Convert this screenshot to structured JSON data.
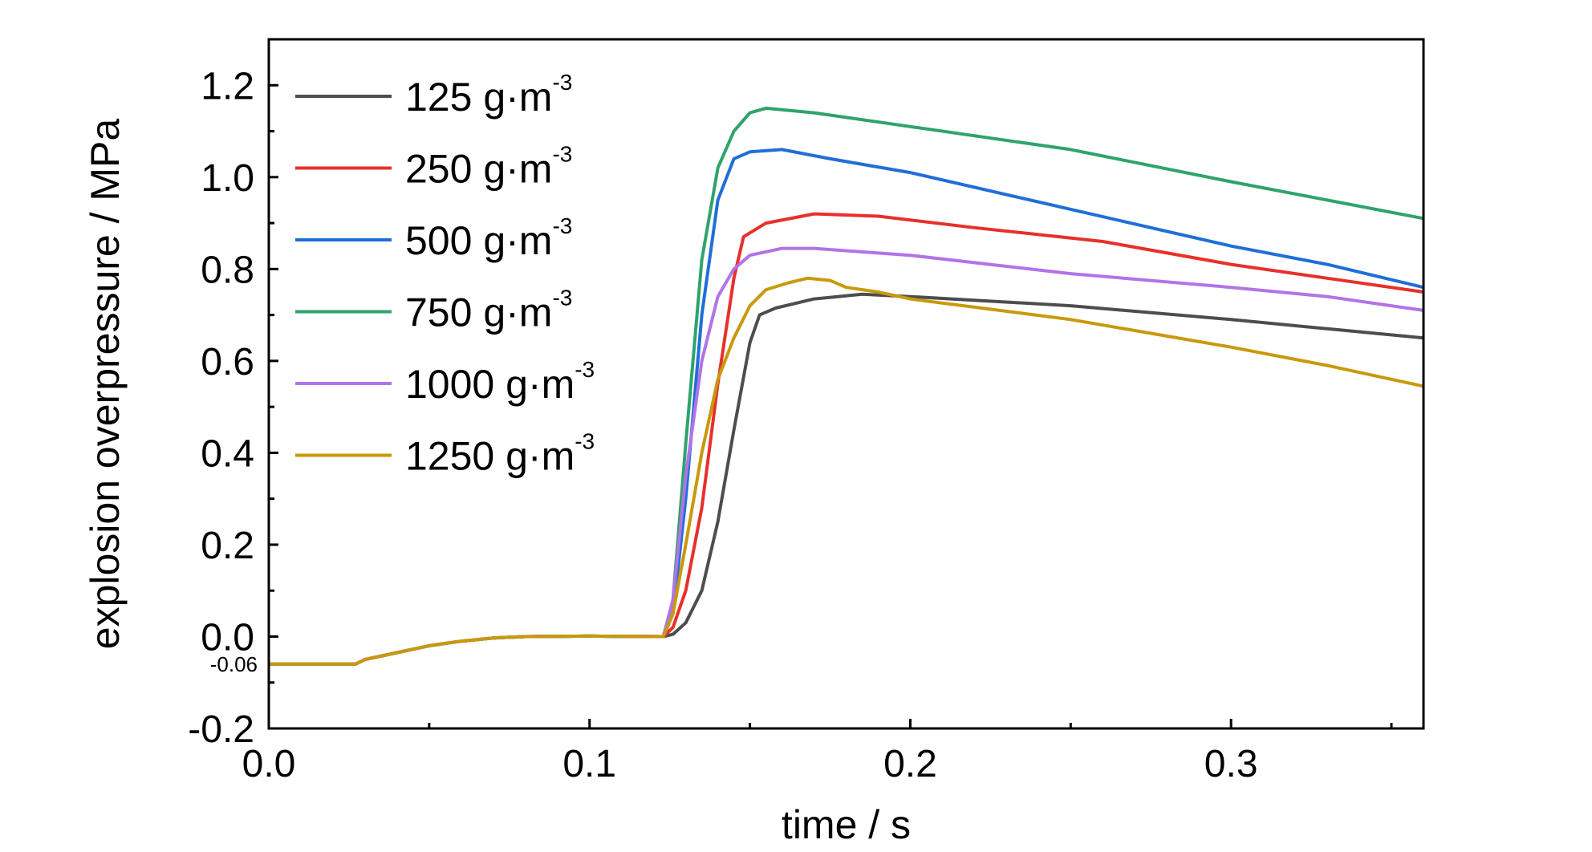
{
  "chart_data": {
    "type": "line",
    "xlabel": "time / s",
    "ylabel": "explosion overpressure / MPa",
    "xlim": [
      0,
      0.36
    ],
    "ylim": [
      -0.2,
      1.3
    ],
    "xticks": [
      0.0,
      0.1,
      0.2,
      0.3
    ],
    "xtick_labels": [
      "0.0",
      "0.1",
      "0.2",
      "0.3"
    ],
    "yticks": [
      -0.2,
      0.0,
      0.2,
      0.4,
      0.6,
      0.8,
      1.0,
      1.2
    ],
    "ytick_labels": [
      "-0.2",
      "0.0",
      "0.2",
      "0.4",
      "0.6",
      "0.8",
      "1.0",
      "1.2"
    ],
    "annotation": {
      "text": "-0.06",
      "y": -0.06
    },
    "grid": false,
    "legend_position": "top-left",
    "unit_base": "g·m",
    "unit_exponent": "-3",
    "series": [
      {
        "name": "125",
        "color": "#4d4d4d",
        "points": [
          [
            0,
            -0.06
          ],
          [
            0.027,
            -0.06
          ],
          [
            0.03,
            -0.05
          ],
          [
            0.04,
            -0.035
          ],
          [
            0.05,
            -0.02
          ],
          [
            0.06,
            -0.01
          ],
          [
            0.07,
            -0.003
          ],
          [
            0.08,
            0
          ],
          [
            0.1,
            0.001
          ],
          [
            0.123,
            0
          ],
          [
            0.126,
            0.005
          ],
          [
            0.13,
            0.03
          ],
          [
            0.135,
            0.1
          ],
          [
            0.14,
            0.25
          ],
          [
            0.145,
            0.45
          ],
          [
            0.15,
            0.64
          ],
          [
            0.153,
            0.7
          ],
          [
            0.158,
            0.715
          ],
          [
            0.17,
            0.735
          ],
          [
            0.185,
            0.745
          ],
          [
            0.2,
            0.74
          ],
          [
            0.25,
            0.72
          ],
          [
            0.3,
            0.69
          ],
          [
            0.33,
            0.67
          ],
          [
            0.36,
            0.65
          ]
        ]
      },
      {
        "name": "250",
        "color": "#e8302a",
        "points": [
          [
            0,
            -0.06
          ],
          [
            0.027,
            -0.06
          ],
          [
            0.03,
            -0.05
          ],
          [
            0.04,
            -0.035
          ],
          [
            0.05,
            -0.02
          ],
          [
            0.06,
            -0.01
          ],
          [
            0.07,
            -0.003
          ],
          [
            0.08,
            0
          ],
          [
            0.1,
            0.001
          ],
          [
            0.123,
            0
          ],
          [
            0.126,
            0.02
          ],
          [
            0.13,
            0.1
          ],
          [
            0.135,
            0.28
          ],
          [
            0.14,
            0.55
          ],
          [
            0.145,
            0.78
          ],
          [
            0.148,
            0.87
          ],
          [
            0.155,
            0.9
          ],
          [
            0.17,
            0.92
          ],
          [
            0.19,
            0.915
          ],
          [
            0.22,
            0.89
          ],
          [
            0.26,
            0.86
          ],
          [
            0.3,
            0.81
          ],
          [
            0.33,
            0.78
          ],
          [
            0.36,
            0.75
          ]
        ]
      },
      {
        "name": "500",
        "color": "#1f6fd8",
        "points": [
          [
            0,
            -0.06
          ],
          [
            0.027,
            -0.06
          ],
          [
            0.03,
            -0.05
          ],
          [
            0.04,
            -0.035
          ],
          [
            0.05,
            -0.02
          ],
          [
            0.06,
            -0.01
          ],
          [
            0.07,
            -0.003
          ],
          [
            0.08,
            0
          ],
          [
            0.1,
            0.001
          ],
          [
            0.123,
            0
          ],
          [
            0.126,
            0.05
          ],
          [
            0.13,
            0.3
          ],
          [
            0.135,
            0.7
          ],
          [
            0.14,
            0.95
          ],
          [
            0.145,
            1.04
          ],
          [
            0.15,
            1.055
          ],
          [
            0.16,
            1.06
          ],
          [
            0.175,
            1.04
          ],
          [
            0.2,
            1.01
          ],
          [
            0.25,
            0.93
          ],
          [
            0.3,
            0.85
          ],
          [
            0.33,
            0.81
          ],
          [
            0.36,
            0.76
          ]
        ]
      },
      {
        "name": "750",
        "color": "#2fa36b",
        "points": [
          [
            0,
            -0.06
          ],
          [
            0.027,
            -0.06
          ],
          [
            0.03,
            -0.05
          ],
          [
            0.04,
            -0.035
          ],
          [
            0.05,
            -0.02
          ],
          [
            0.06,
            -0.01
          ],
          [
            0.07,
            -0.003
          ],
          [
            0.08,
            0
          ],
          [
            0.1,
            0.001
          ],
          [
            0.123,
            0
          ],
          [
            0.126,
            0.08
          ],
          [
            0.13,
            0.42
          ],
          [
            0.135,
            0.82
          ],
          [
            0.14,
            1.02
          ],
          [
            0.145,
            1.1
          ],
          [
            0.15,
            1.14
          ],
          [
            0.155,
            1.15
          ],
          [
            0.17,
            1.14
          ],
          [
            0.2,
            1.11
          ],
          [
            0.25,
            1.06
          ],
          [
            0.3,
            0.99
          ],
          [
            0.33,
            0.95
          ],
          [
            0.36,
            0.91
          ]
        ]
      },
      {
        "name": "1000",
        "color": "#b174e6",
        "points": [
          [
            0,
            -0.06
          ],
          [
            0.027,
            -0.06
          ],
          [
            0.03,
            -0.05
          ],
          [
            0.04,
            -0.035
          ],
          [
            0.05,
            -0.02
          ],
          [
            0.06,
            -0.01
          ],
          [
            0.07,
            -0.003
          ],
          [
            0.08,
            0
          ],
          [
            0.1,
            0.001
          ],
          [
            0.123,
            0
          ],
          [
            0.126,
            0.08
          ],
          [
            0.13,
            0.35
          ],
          [
            0.135,
            0.6
          ],
          [
            0.14,
            0.74
          ],
          [
            0.145,
            0.8
          ],
          [
            0.15,
            0.83
          ],
          [
            0.16,
            0.845
          ],
          [
            0.17,
            0.845
          ],
          [
            0.2,
            0.83
          ],
          [
            0.25,
            0.79
          ],
          [
            0.3,
            0.76
          ],
          [
            0.33,
            0.74
          ],
          [
            0.36,
            0.71
          ]
        ]
      },
      {
        "name": "1250",
        "color": "#c9990c",
        "points": [
          [
            0,
            -0.06
          ],
          [
            0.027,
            -0.06
          ],
          [
            0.03,
            -0.05
          ],
          [
            0.04,
            -0.035
          ],
          [
            0.05,
            -0.02
          ],
          [
            0.06,
            -0.01
          ],
          [
            0.07,
            -0.003
          ],
          [
            0.08,
            0
          ],
          [
            0.1,
            0.001
          ],
          [
            0.123,
            0
          ],
          [
            0.126,
            0.05
          ],
          [
            0.13,
            0.2
          ],
          [
            0.135,
            0.4
          ],
          [
            0.14,
            0.56
          ],
          [
            0.145,
            0.65
          ],
          [
            0.15,
            0.72
          ],
          [
            0.155,
            0.755
          ],
          [
            0.162,
            0.77
          ],
          [
            0.168,
            0.78
          ],
          [
            0.175,
            0.775
          ],
          [
            0.18,
            0.76
          ],
          [
            0.19,
            0.75
          ],
          [
            0.2,
            0.735
          ],
          [
            0.25,
            0.69
          ],
          [
            0.3,
            0.63
          ],
          [
            0.33,
            0.59
          ],
          [
            0.36,
            0.545
          ]
        ]
      }
    ]
  }
}
